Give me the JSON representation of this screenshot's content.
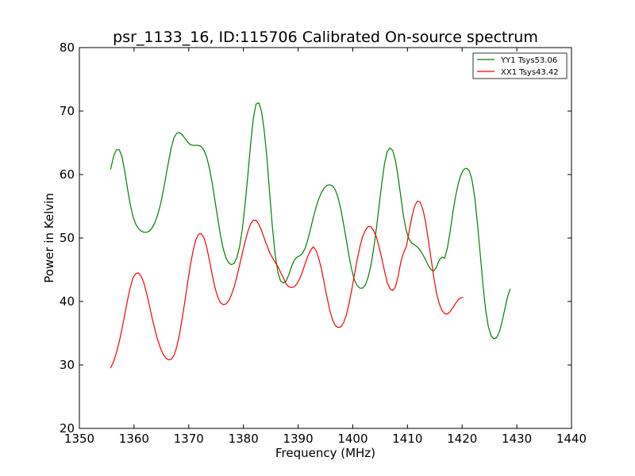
{
  "chart_data": {
    "type": "line",
    "title": "psr_1133_16, ID:115706 Calibrated On-source spectrum",
    "xlabel": "Frequency (MHz)",
    "ylabel": "Power in Kelvin",
    "xlim": [
      1350,
      1440
    ],
    "ylim": [
      20,
      80
    ],
    "xticks": [
      1350,
      1360,
      1370,
      1380,
      1390,
      1400,
      1410,
      1420,
      1430,
      1440
    ],
    "yticks": [
      20,
      30,
      40,
      50,
      60,
      70,
      80
    ],
    "grid": false,
    "legend_position": "top-right",
    "series": [
      {
        "name": "YY1 Tsys53.06",
        "color": "#008000",
        "points": [
          [
            1355.7,
            60.8
          ],
          [
            1356.3,
            63.0
          ],
          [
            1356.8,
            63.9
          ],
          [
            1357.3,
            63.9
          ],
          [
            1357.8,
            62.8
          ],
          [
            1358.3,
            60.5
          ],
          [
            1358.8,
            57.8
          ],
          [
            1359.3,
            55.3
          ],
          [
            1359.8,
            53.4
          ],
          [
            1360.3,
            52.2
          ],
          [
            1360.8,
            51.5
          ],
          [
            1361.3,
            51.1
          ],
          [
            1361.8,
            50.9
          ],
          [
            1362.3,
            50.9
          ],
          [
            1362.8,
            51.1
          ],
          [
            1363.3,
            51.6
          ],
          [
            1363.8,
            52.4
          ],
          [
            1364.3,
            53.6
          ],
          [
            1364.8,
            55.2
          ],
          [
            1365.3,
            57.2
          ],
          [
            1365.8,
            59.6
          ],
          [
            1366.3,
            62.0
          ],
          [
            1366.8,
            64.2
          ],
          [
            1367.3,
            65.8
          ],
          [
            1367.8,
            66.5
          ],
          [
            1368.3,
            66.6
          ],
          [
            1368.8,
            66.3
          ],
          [
            1369.3,
            65.7
          ],
          [
            1369.8,
            65.1
          ],
          [
            1370.3,
            64.7
          ],
          [
            1370.8,
            64.6
          ],
          [
            1371.3,
            64.6
          ],
          [
            1371.8,
            64.6
          ],
          [
            1372.3,
            64.4
          ],
          [
            1372.8,
            63.8
          ],
          [
            1373.3,
            62.7
          ],
          [
            1373.8,
            60.9
          ],
          [
            1374.3,
            58.6
          ],
          [
            1374.8,
            55.9
          ],
          [
            1375.3,
            53.1
          ],
          [
            1375.8,
            50.5
          ],
          [
            1376.3,
            48.3
          ],
          [
            1376.8,
            46.9
          ],
          [
            1377.3,
            46.1
          ],
          [
            1377.8,
            45.8
          ],
          [
            1378.3,
            46.0
          ],
          [
            1378.8,
            46.9
          ],
          [
            1379.3,
            48.6
          ],
          [
            1379.8,
            51.4
          ],
          [
            1380.3,
            55.2
          ],
          [
            1380.8,
            59.8
          ],
          [
            1381.3,
            64.6
          ],
          [
            1381.8,
            68.8
          ],
          [
            1382.3,
            71.1
          ],
          [
            1382.8,
            71.3
          ],
          [
            1383.3,
            70.0
          ],
          [
            1383.8,
            67.0
          ],
          [
            1384.3,
            62.6
          ],
          [
            1384.8,
            57.1
          ],
          [
            1385.3,
            51.7
          ],
          [
            1385.8,
            47.4
          ],
          [
            1386.3,
            44.6
          ],
          [
            1386.8,
            43.2
          ],
          [
            1387.3,
            42.9
          ],
          [
            1387.8,
            43.2
          ],
          [
            1388.3,
            44.2
          ],
          [
            1388.8,
            45.5
          ],
          [
            1389.3,
            46.5
          ],
          [
            1389.8,
            47.0
          ],
          [
            1390.3,
            47.2
          ],
          [
            1390.8,
            47.6
          ],
          [
            1391.3,
            48.4
          ],
          [
            1391.8,
            49.8
          ],
          [
            1392.3,
            51.5
          ],
          [
            1392.8,
            53.3
          ],
          [
            1393.3,
            54.9
          ],
          [
            1393.8,
            56.2
          ],
          [
            1394.3,
            57.2
          ],
          [
            1394.8,
            57.9
          ],
          [
            1395.3,
            58.3
          ],
          [
            1395.8,
            58.4
          ],
          [
            1396.3,
            58.2
          ],
          [
            1396.8,
            57.6
          ],
          [
            1397.3,
            56.4
          ],
          [
            1397.8,
            54.6
          ],
          [
            1398.3,
            52.3
          ],
          [
            1398.8,
            49.8
          ],
          [
            1399.3,
            47.2
          ],
          [
            1399.8,
            45.0
          ],
          [
            1400.3,
            43.4
          ],
          [
            1400.8,
            42.5
          ],
          [
            1401.3,
            42.1
          ],
          [
            1401.8,
            42.1
          ],
          [
            1402.3,
            42.6
          ],
          [
            1402.8,
            43.8
          ],
          [
            1403.3,
            45.6
          ],
          [
            1403.8,
            48.2
          ],
          [
            1404.3,
            51.4
          ],
          [
            1404.8,
            55.0
          ],
          [
            1405.3,
            58.6
          ],
          [
            1405.8,
            61.7
          ],
          [
            1406.3,
            63.6
          ],
          [
            1406.8,
            64.2
          ],
          [
            1407.3,
            63.8
          ],
          [
            1407.8,
            62.2
          ],
          [
            1408.3,
            59.6
          ],
          [
            1408.8,
            56.4
          ],
          [
            1409.3,
            53.3
          ],
          [
            1409.8,
            51.1
          ],
          [
            1410.3,
            49.8
          ],
          [
            1410.8,
            49.2
          ],
          [
            1411.3,
            48.9
          ],
          [
            1411.8,
            48.6
          ],
          [
            1412.3,
            48.1
          ],
          [
            1412.8,
            47.4
          ],
          [
            1413.3,
            46.6
          ],
          [
            1413.8,
            45.7
          ],
          [
            1414.3,
            45.0
          ],
          [
            1414.8,
            44.8
          ],
          [
            1415.3,
            45.4
          ],
          [
            1415.8,
            46.5
          ],
          [
            1416.3,
            47.0
          ],
          [
            1416.8,
            46.8
          ],
          [
            1417.3,
            48.4
          ],
          [
            1417.8,
            51.0
          ],
          [
            1418.3,
            54.0
          ],
          [
            1418.8,
            56.6
          ],
          [
            1419.3,
            58.6
          ],
          [
            1419.8,
            60.0
          ],
          [
            1420.3,
            60.8
          ],
          [
            1420.8,
            61.0
          ],
          [
            1421.3,
            60.6
          ],
          [
            1421.8,
            59.2
          ],
          [
            1422.3,
            56.4
          ],
          [
            1422.8,
            52.3
          ],
          [
            1423.3,
            47.5
          ],
          [
            1423.8,
            42.7
          ],
          [
            1424.3,
            38.7
          ],
          [
            1424.8,
            36.0
          ],
          [
            1425.3,
            34.6
          ],
          [
            1425.8,
            34.1
          ],
          [
            1426.3,
            34.3
          ],
          [
            1426.8,
            35.2
          ],
          [
            1427.3,
            36.8
          ],
          [
            1427.8,
            38.8
          ],
          [
            1428.3,
            40.7
          ],
          [
            1428.8,
            42.0
          ]
        ]
      },
      {
        "name": "XX1 Tsys43.42",
        "color": "#ff0000",
        "points": [
          [
            1355.7,
            29.5
          ],
          [
            1356.3,
            30.6
          ],
          [
            1356.8,
            32.0
          ],
          [
            1357.3,
            33.7
          ],
          [
            1357.8,
            35.7
          ],
          [
            1358.3,
            37.9
          ],
          [
            1358.8,
            40.2
          ],
          [
            1359.3,
            42.2
          ],
          [
            1359.8,
            43.7
          ],
          [
            1360.3,
            44.4
          ],
          [
            1360.8,
            44.5
          ],
          [
            1361.3,
            44.0
          ],
          [
            1361.8,
            42.9
          ],
          [
            1362.3,
            41.3
          ],
          [
            1362.8,
            39.4
          ],
          [
            1363.3,
            37.4
          ],
          [
            1363.8,
            35.6
          ],
          [
            1364.3,
            34.0
          ],
          [
            1364.8,
            32.7
          ],
          [
            1365.3,
            31.7
          ],
          [
            1365.8,
            31.1
          ],
          [
            1366.3,
            30.8
          ],
          [
            1366.8,
            30.9
          ],
          [
            1367.3,
            31.5
          ],
          [
            1367.8,
            32.8
          ],
          [
            1368.3,
            34.8
          ],
          [
            1368.8,
            37.3
          ],
          [
            1369.3,
            40.1
          ],
          [
            1369.8,
            43.0
          ],
          [
            1370.3,
            45.7
          ],
          [
            1370.8,
            48.0
          ],
          [
            1371.3,
            49.7
          ],
          [
            1371.8,
            50.6
          ],
          [
            1372.3,
            50.7
          ],
          [
            1372.8,
            50.0
          ],
          [
            1373.3,
            48.5
          ],
          [
            1373.8,
            46.4
          ],
          [
            1374.3,
            44.2
          ],
          [
            1374.8,
            42.2
          ],
          [
            1375.3,
            40.7
          ],
          [
            1375.8,
            39.8
          ],
          [
            1376.3,
            39.5
          ],
          [
            1376.8,
            39.6
          ],
          [
            1377.3,
            40.1
          ],
          [
            1377.8,
            41.0
          ],
          [
            1378.3,
            42.3
          ],
          [
            1378.8,
            43.9
          ],
          [
            1379.3,
            45.7
          ],
          [
            1379.8,
            47.6
          ],
          [
            1380.3,
            49.4
          ],
          [
            1380.8,
            51.0
          ],
          [
            1381.3,
            52.2
          ],
          [
            1381.8,
            52.8
          ],
          [
            1382.3,
            52.8
          ],
          [
            1382.8,
            52.2
          ],
          [
            1383.3,
            51.2
          ],
          [
            1383.8,
            50.0
          ],
          [
            1384.3,
            48.8
          ],
          [
            1384.8,
            47.7
          ],
          [
            1385.3,
            46.9
          ],
          [
            1385.8,
            46.2
          ],
          [
            1386.3,
            45.5
          ],
          [
            1386.8,
            44.6
          ],
          [
            1387.3,
            43.7
          ],
          [
            1387.8,
            42.8
          ],
          [
            1388.3,
            42.3
          ],
          [
            1388.8,
            42.2
          ],
          [
            1389.3,
            42.3
          ],
          [
            1389.8,
            42.8
          ],
          [
            1390.3,
            43.6
          ],
          [
            1390.8,
            44.7
          ],
          [
            1391.3,
            46.0
          ],
          [
            1391.8,
            47.2
          ],
          [
            1392.3,
            48.1
          ],
          [
            1392.8,
            48.6
          ],
          [
            1393.3,
            48.0
          ],
          [
            1393.8,
            46.7
          ],
          [
            1394.3,
            45.0
          ],
          [
            1394.8,
            42.8
          ],
          [
            1395.3,
            40.6
          ],
          [
            1395.8,
            38.6
          ],
          [
            1396.3,
            37.1
          ],
          [
            1396.8,
            36.2
          ],
          [
            1397.3,
            35.9
          ],
          [
            1397.8,
            36.0
          ],
          [
            1398.3,
            36.6
          ],
          [
            1398.8,
            37.8
          ],
          [
            1399.3,
            39.6
          ],
          [
            1399.8,
            41.8
          ],
          [
            1400.3,
            44.2
          ],
          [
            1400.8,
            46.6
          ],
          [
            1401.3,
            48.6
          ],
          [
            1401.8,
            50.2
          ],
          [
            1402.3,
            51.2
          ],
          [
            1402.8,
            51.8
          ],
          [
            1403.3,
            51.8
          ],
          [
            1403.8,
            51.2
          ],
          [
            1404.3,
            50.2
          ],
          [
            1404.8,
            48.6
          ],
          [
            1405.3,
            46.8
          ],
          [
            1405.8,
            44.8
          ],
          [
            1406.3,
            43.0
          ],
          [
            1406.8,
            42.0
          ],
          [
            1407.3,
            41.7
          ],
          [
            1407.8,
            42.3
          ],
          [
            1408.3,
            44.0
          ],
          [
            1408.8,
            46.3
          ],
          [
            1409.3,
            47.7
          ],
          [
            1409.8,
            48.7
          ],
          [
            1410.3,
            51.0
          ],
          [
            1410.8,
            53.3
          ],
          [
            1411.3,
            55.0
          ],
          [
            1411.8,
            55.8
          ],
          [
            1412.3,
            55.7
          ],
          [
            1412.8,
            54.6
          ],
          [
            1413.3,
            52.6
          ],
          [
            1413.8,
            49.8
          ],
          [
            1414.3,
            46.8
          ],
          [
            1414.8,
            43.9
          ],
          [
            1415.3,
            41.4
          ],
          [
            1415.8,
            39.7
          ],
          [
            1416.3,
            38.6
          ],
          [
            1416.8,
            38.1
          ],
          [
            1417.3,
            38.0
          ],
          [
            1417.8,
            38.4
          ],
          [
            1418.3,
            39.0
          ],
          [
            1418.8,
            39.7
          ],
          [
            1419.3,
            40.3
          ],
          [
            1419.8,
            40.6
          ],
          [
            1420.2,
            40.6
          ]
        ]
      }
    ]
  }
}
